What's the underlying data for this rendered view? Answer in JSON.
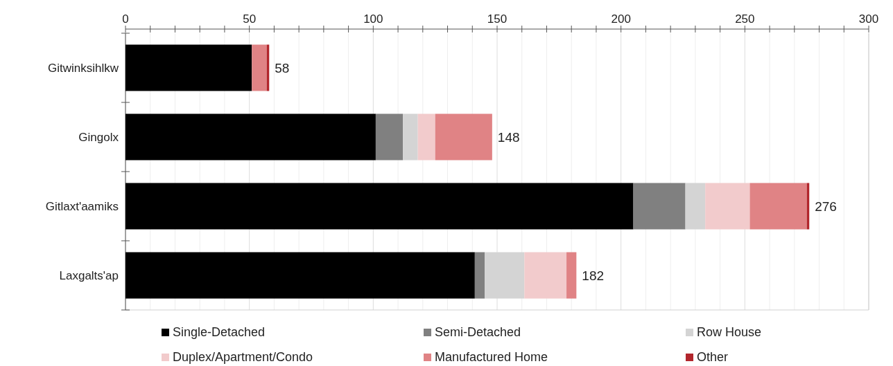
{
  "chart_data": {
    "type": "bar",
    "orientation": "horizontal",
    "stacked": true,
    "categories": [
      "Gitwinksihlkw",
      "Gingolx",
      "Gitlaxt'aamiks",
      "Laxgalts'ap"
    ],
    "series": [
      {
        "name": "Single-Detached",
        "color": "#000000",
        "values": [
          51,
          101,
          205,
          141
        ]
      },
      {
        "name": "Semi-Detached",
        "color": "#808080",
        "values": [
          0,
          11,
          21,
          4
        ]
      },
      {
        "name": "Row House",
        "color": "#d4d4d4",
        "values": [
          0,
          6,
          8,
          16
        ]
      },
      {
        "name": "Duplex/Apartment/Condo",
        "color": "#f2cbcc",
        "values": [
          0,
          7,
          18,
          17
        ]
      },
      {
        "name": "Manufactured Home",
        "color": "#e08385",
        "values": [
          6,
          23,
          23,
          4
        ]
      },
      {
        "name": "Other",
        "color": "#b2262c",
        "values": [
          1,
          0,
          1,
          0
        ]
      }
    ],
    "totals": [
      "58",
      "148",
      "276",
      "182"
    ],
    "xlim": [
      0,
      300
    ],
    "xticks": [
      0,
      {
        "value": 10,
        "label": null
      },
      {
        "value": 20,
        "label": null
      },
      {
        "value": 30,
        "label": null
      },
      {
        "value": 40,
        "label": null
      },
      50,
      {
        "value": 60,
        "label": null
      },
      {
        "value": 70,
        "label": null
      },
      {
        "value": 80,
        "label": null
      },
      {
        "value": 90,
        "label": null
      },
      100,
      {
        "value": 110,
        "label": null
      },
      {
        "value": 120,
        "label": null
      },
      {
        "value": 130,
        "label": null
      },
      {
        "value": 140,
        "label": null
      },
      150,
      {
        "value": 160,
        "label": null
      },
      {
        "value": 170,
        "label": null
      },
      {
        "value": 180,
        "label": null
      },
      {
        "value": 190,
        "label": null
      },
      200,
      {
        "value": 210,
        "label": null
      },
      {
        "value": 220,
        "label": null
      },
      {
        "value": 230,
        "label": null
      },
      {
        "value": 240,
        "label": null
      },
      250,
      {
        "value": 260,
        "label": null
      },
      {
        "value": 270,
        "label": null
      },
      {
        "value": 280,
        "label": null
      },
      {
        "value": 290,
        "label": null
      },
      300
    ],
    "grid": "x",
    "legend": "bottom"
  }
}
